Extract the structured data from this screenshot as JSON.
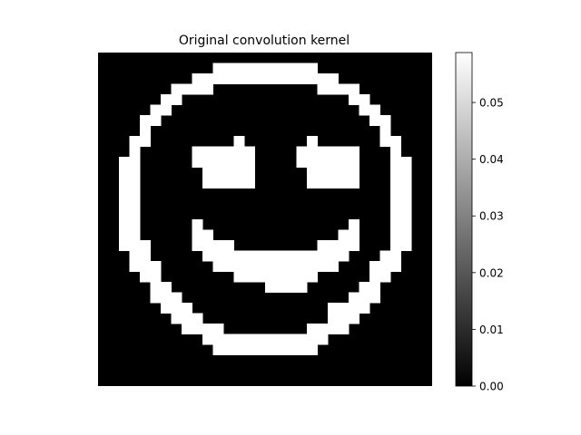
{
  "chart_data": {
    "type": "heatmap",
    "title": "Original convolution kernel",
    "colormap": "gray",
    "colormap_colors": [
      "#000000",
      "#ffffff"
    ],
    "vmin": 0.0,
    "vmax": 0.0588,
    "cell_value": 0.0588,
    "colorbar_ticks": [
      "0.00",
      "0.01",
      "0.02",
      "0.03",
      "0.04",
      "0.05"
    ],
    "colorbar_tick_values": [
      0.0,
      0.01,
      0.02,
      0.03,
      0.04,
      0.05
    ],
    "rows": 32,
    "cols": 32,
    "mask": [
      "00000000000000000000000000000000",
      "00000000000111111111100000000000",
      "00000000011111111111111000000000",
      "00000001111000000000011110000000",
      "00000011000000000000000011000000",
      "00000110000000000000000001100000",
      "00001100000000000000000000110000",
      "00001000000000000000000000010000",
      "00011000000001000000100000011000",
      "00010000011111100001111110001000",
      "00110000011111100001111110001100",
      "00110000001111100000111110001100",
      "00110000001111100000111110001100",
      "00110000000000000000000000001100",
      "00110000000000000000000000001100",
      "00110000000000000000000000001100",
      "00110000010000000000000010001100",
      "00110000011000000000000110001100",
      "00111000011110000000011110001100",
      "00011000001111111111111100011000",
      "00011100000111111111111000111000",
      "00001100000001111111100000110000",
      "00000110000000001111000001100000",
      "00000111000000000000000011100000",
      "00000011100000000000001111000000",
      "00000001110000000000001110000000",
      "00000000111100000000111100000000",
      "00000000001111111111110000000000",
      "00000000000111111111100000000000",
      "00000000000000000000000000000000",
      "00000000000000000000000000000000",
      "00000000000000000000000000000000"
    ]
  }
}
